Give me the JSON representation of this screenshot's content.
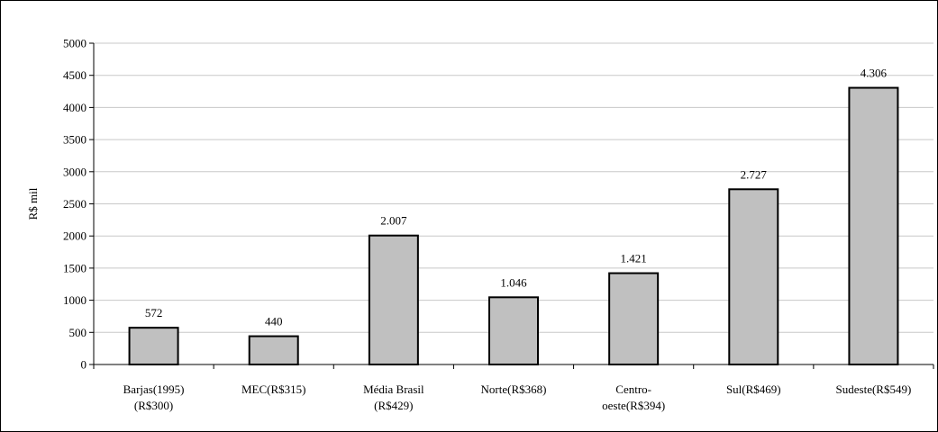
{
  "chart_data": {
    "type": "bar",
    "title": "",
    "xlabel": "",
    "ylabel": "R$ mil",
    "ylim": [
      0,
      5000
    ],
    "yticks": [
      0,
      500,
      1000,
      1500,
      2000,
      2500,
      3000,
      3500,
      4000,
      4500,
      5000
    ],
    "grid": true,
    "legend": "none",
    "categories": [
      [
        "Barjas(1995)",
        "(R$300)"
      ],
      [
        "MEC(R$315)"
      ],
      [
        "Média Brasil",
        "(R$429)"
      ],
      [
        "Norte(R$368)"
      ],
      [
        "Centro-",
        "oeste(R$394)"
      ],
      [
        "Sul(R$469)"
      ],
      [
        "Sudeste(R$549)"
      ]
    ],
    "values": [
      572,
      440,
      2007,
      1046,
      1421,
      2727,
      4306
    ],
    "data_labels": [
      "572",
      "440",
      "2.007",
      "1.046",
      "1.421",
      "2.727",
      "4.306"
    ],
    "colors": {
      "bar_fill": "#c0c0c0",
      "bar_stroke": "#000000",
      "grid": "#c8c8c8",
      "axis": "#000000"
    }
  }
}
